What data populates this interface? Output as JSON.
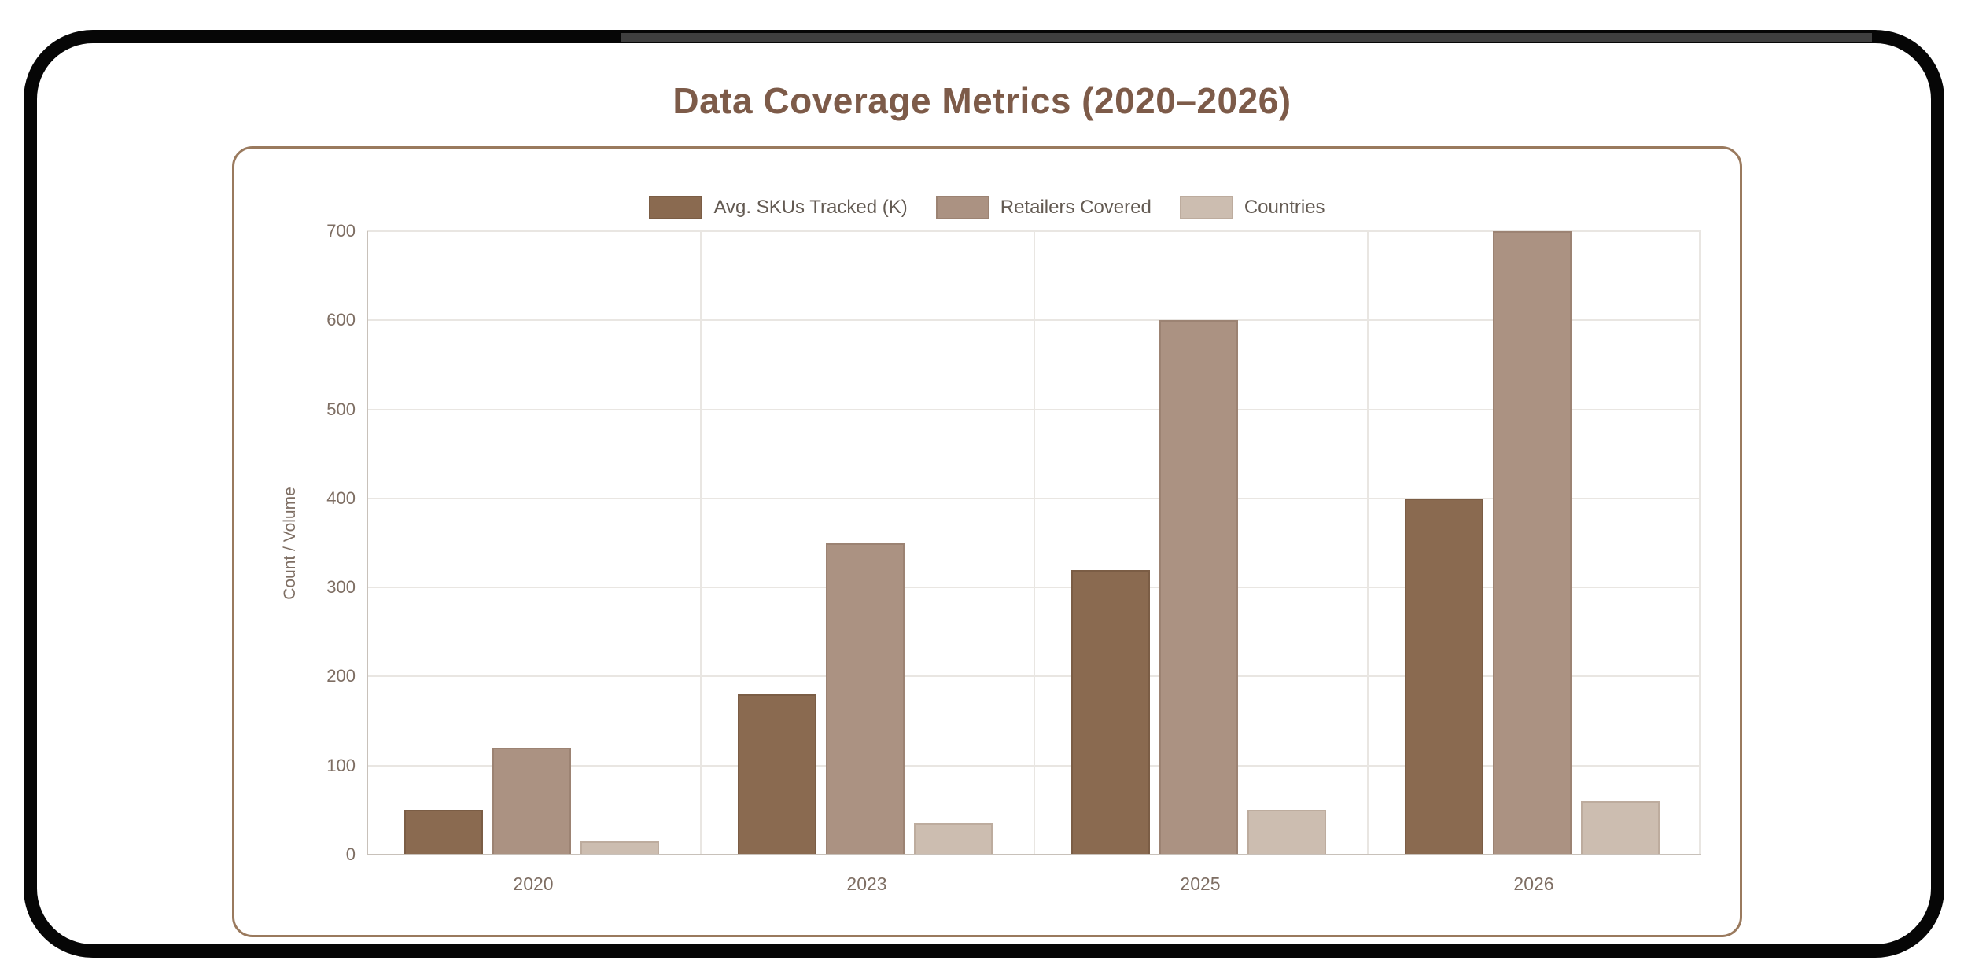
{
  "page_title": "Data Coverage Metrics (2020–2026)",
  "chart_data": {
    "type": "bar",
    "title": "Data Coverage Metrics (2020–2026)",
    "categories": [
      "2020",
      "2023",
      "2025",
      "2026"
    ],
    "series": [
      {
        "name": "Avg. SKUs Tracked (K)",
        "values": [
          50,
          180,
          320,
          400
        ],
        "fill": "#8a6a50",
        "border": "#7b5d45"
      },
      {
        "name": "Retailers Covered",
        "values": [
          120,
          350,
          600,
          700
        ],
        "fill": "#ab9282",
        "border": "#9c8373"
      },
      {
        "name": "Countries",
        "values": [
          15,
          35,
          50,
          60
        ],
        "fill": "#ccbdb0",
        "border": "#bdac9e"
      }
    ],
    "xlabel": "",
    "ylabel": "Count / Volume",
    "ylim": [
      0,
      700
    ],
    "yticks": [
      0,
      100,
      200,
      300,
      400,
      500,
      600,
      700
    ],
    "grid": true,
    "legend_position": "top"
  },
  "colors": {
    "title": "#7d5b49",
    "axis_text": "#7e6e63",
    "legend_text": "#635a52",
    "gridline": "#e9e6e2",
    "axis_line": "#c8c1ba",
    "card_border": "#9a7a5e",
    "frame": "#060606"
  }
}
